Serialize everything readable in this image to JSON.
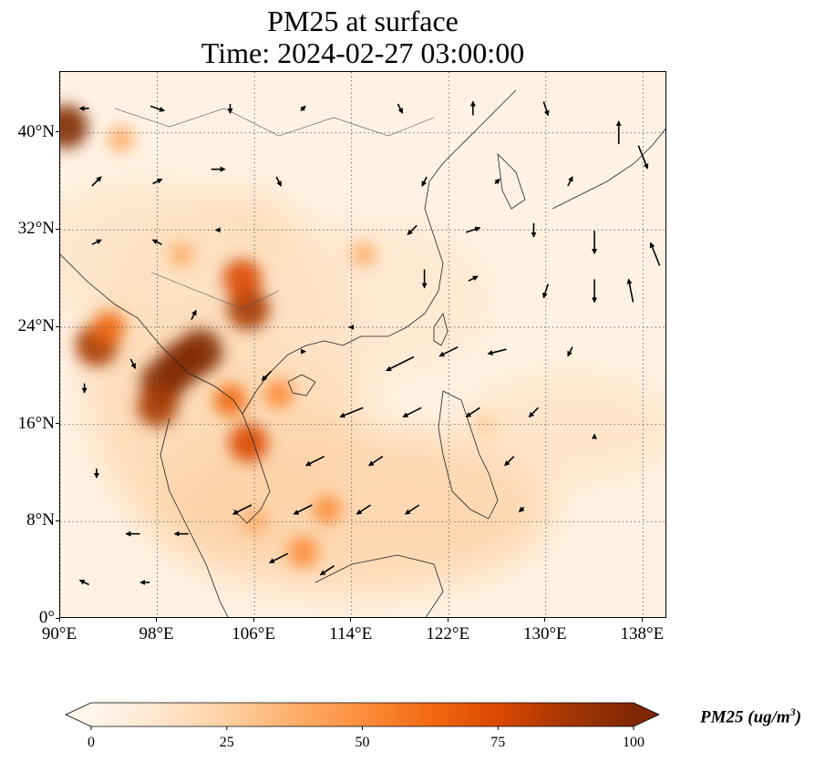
{
  "figure": {
    "title_line1": "PM25 at surface",
    "title_line2": "Time: 2024-02-27 03:00:00"
  },
  "map_extent": {
    "lon_min": 90,
    "lon_max": 140,
    "lat_min": 0,
    "lat_max": 45
  },
  "axes": {
    "lat_ticks": [
      {
        "value": 0,
        "label": "0°"
      },
      {
        "value": 8,
        "label": "8°N"
      },
      {
        "value": 16,
        "label": "16°N"
      },
      {
        "value": 24,
        "label": "24°N"
      },
      {
        "value": 32,
        "label": "32°N"
      },
      {
        "value": 40,
        "label": "40°N"
      }
    ],
    "lon_ticks": [
      {
        "value": 90,
        "label": "90°E"
      },
      {
        "value": 98,
        "label": "98°E"
      },
      {
        "value": 106,
        "label": "106°E"
      },
      {
        "value": 114,
        "label": "114°E"
      },
      {
        "value": 122,
        "label": "122°E"
      },
      {
        "value": 130,
        "label": "130°E"
      },
      {
        "value": 138,
        "label": "138°E"
      }
    ],
    "gridlines": "dotted"
  },
  "colorbar": {
    "title": "PM25 (ug/m",
    "title_sup": "3",
    "title_end": ")",
    "min": 0,
    "max": 100,
    "ticks": [
      {
        "value": 0,
        "label": "0"
      },
      {
        "value": 25,
        "label": "25"
      },
      {
        "value": 50,
        "label": "50"
      },
      {
        "value": 75,
        "label": "75"
      },
      {
        "value": 100,
        "label": "100"
      }
    ],
    "colormap": [
      "#fff5eb",
      "#fee6ce",
      "#fdd0a2",
      "#fdae6b",
      "#fd8d3c",
      "#f16913",
      "#d94801",
      "#a63603",
      "#7f2704"
    ],
    "extend": "both"
  },
  "pm25_hotspots": [
    {
      "lon": 90.5,
      "lat": 40.5,
      "value": 95
    },
    {
      "lon": 93,
      "lat": 22.5,
      "value": 90
    },
    {
      "lon": 100,
      "lat": 21,
      "value": 100
    },
    {
      "lon": 98.5,
      "lat": 19.5,
      "value": 100
    },
    {
      "lon": 101.5,
      "lat": 22,
      "value": 100
    },
    {
      "lon": 98,
      "lat": 17.5,
      "value": 85
    },
    {
      "lon": 105.5,
      "lat": 25.5,
      "value": 90
    },
    {
      "lon": 105,
      "lat": 28,
      "value": 80
    },
    {
      "lon": 105.5,
      "lat": 14.5,
      "value": 80
    },
    {
      "lon": 94,
      "lat": 24,
      "value": 60
    },
    {
      "lon": 104,
      "lat": 18,
      "value": 60
    },
    {
      "lon": 108,
      "lat": 18.5,
      "value": 50
    },
    {
      "lon": 110,
      "lat": 5.5,
      "value": 55
    },
    {
      "lon": 112,
      "lat": 9,
      "value": 45
    },
    {
      "lon": 95,
      "lat": 39.5,
      "value": 40
    },
    {
      "lon": 100,
      "lat": 30,
      "value": 35
    },
    {
      "lon": 115,
      "lat": 30,
      "value": 35
    },
    {
      "lon": 106,
      "lat": 8,
      "value": 40
    },
    {
      "lon": 125,
      "lat": 16,
      "value": 30
    }
  ],
  "wind_vectors": [
    {
      "lon": 92,
      "lat": 42,
      "u": -2,
      "v": 0
    },
    {
      "lon": 98,
      "lat": 42,
      "u": 3,
      "v": -1
    },
    {
      "lon": 104,
      "lat": 42,
      "u": 0,
      "v": -2
    },
    {
      "lon": 110,
      "lat": 42,
      "u": 1,
      "v": 1
    },
    {
      "lon": 118,
      "lat": 42,
      "u": 1,
      "v": -2
    },
    {
      "lon": 124,
      "lat": 42,
      "u": 0,
      "v": 3
    },
    {
      "lon": 130,
      "lat": 42,
      "u": 1,
      "v": -3
    },
    {
      "lon": 136,
      "lat": 40,
      "u": 0,
      "v": 5
    },
    {
      "lon": 138,
      "lat": 38,
      "u": 2,
      "v": -5
    },
    {
      "lon": 93,
      "lat": 36,
      "u": 2,
      "v": 2
    },
    {
      "lon": 98,
      "lat": 36,
      "u": 2,
      "v": 1
    },
    {
      "lon": 103,
      "lat": 37,
      "u": 3,
      "v": 0
    },
    {
      "lon": 108,
      "lat": 36,
      "u": 1,
      "v": -2
    },
    {
      "lon": 120,
      "lat": 36,
      "u": -1,
      "v": -2
    },
    {
      "lon": 126,
      "lat": 36,
      "u": 1,
      "v": 1
    },
    {
      "lon": 132,
      "lat": 36,
      "u": 1,
      "v": 2
    },
    {
      "lon": 93,
      "lat": 31,
      "u": 2,
      "v": 1
    },
    {
      "lon": 98,
      "lat": 31,
      "u": -2,
      "v": 1
    },
    {
      "lon": 103,
      "lat": 32,
      "u": -1,
      "v": 0
    },
    {
      "lon": 119,
      "lat": 32,
      "u": -2,
      "v": -2
    },
    {
      "lon": 124,
      "lat": 32,
      "u": 3,
      "v": 1
    },
    {
      "lon": 129,
      "lat": 32,
      "u": 0,
      "v": -3
    },
    {
      "lon": 134,
      "lat": 31,
      "u": 0,
      "v": -5
    },
    {
      "lon": 139,
      "lat": 30,
      "u": -2,
      "v": 5
    },
    {
      "lon": 120,
      "lat": 28,
      "u": 0,
      "v": -4
    },
    {
      "lon": 124,
      "lat": 28,
      "u": 2,
      "v": 1
    },
    {
      "lon": 130,
      "lat": 27,
      "u": -1,
      "v": -3
    },
    {
      "lon": 134,
      "lat": 27,
      "u": 0,
      "v": -5
    },
    {
      "lon": 137,
      "lat": 27,
      "u": -1,
      "v": 5
    },
    {
      "lon": 118,
      "lat": 21,
      "u": -6,
      "v": -3
    },
    {
      "lon": 122,
      "lat": 22,
      "u": -4,
      "v": -2
    },
    {
      "lon": 126,
      "lat": 22,
      "u": -4,
      "v": -1
    },
    {
      "lon": 132,
      "lat": 22,
      "u": -1,
      "v": -2
    },
    {
      "lon": 114,
      "lat": 17,
      "u": -5,
      "v": -2
    },
    {
      "lon": 119,
      "lat": 17,
      "u": -4,
      "v": -2
    },
    {
      "lon": 124,
      "lat": 17,
      "u": -3,
      "v": -2
    },
    {
      "lon": 129,
      "lat": 17,
      "u": -2,
      "v": -2
    },
    {
      "lon": 111,
      "lat": 13,
      "u": -4,
      "v": -2
    },
    {
      "lon": 116,
      "lat": 13,
      "u": -3,
      "v": -2
    },
    {
      "lon": 127,
      "lat": 13,
      "u": -2,
      "v": -2
    },
    {
      "lon": 105,
      "lat": 9,
      "u": -4,
      "v": -2
    },
    {
      "lon": 110,
      "lat": 9,
      "u": -4,
      "v": -2
    },
    {
      "lon": 115,
      "lat": 9,
      "u": -3,
      "v": -2
    },
    {
      "lon": 119,
      "lat": 9,
      "u": -3,
      "v": -2
    },
    {
      "lon": 108,
      "lat": 5,
      "u": -4,
      "v": -2
    },
    {
      "lon": 112,
      "lat": 4,
      "u": -3,
      "v": -2
    },
    {
      "lon": 96,
      "lat": 7,
      "u": -3,
      "v": 0
    },
    {
      "lon": 100,
      "lat": 7,
      "u": -3,
      "v": 0
    },
    {
      "lon": 93,
      "lat": 12,
      "u": 0,
      "v": -2
    },
    {
      "lon": 92,
      "lat": 3,
      "u": -2,
      "v": 1
    },
    {
      "lon": 97,
      "lat": 3,
      "u": -2,
      "v": 0
    },
    {
      "lon": 114,
      "lat": 24,
      "u": -1,
      "v": 0
    },
    {
      "lon": 110,
      "lat": 22,
      "u": 1,
      "v": 0
    },
    {
      "lon": 107,
      "lat": 20,
      "u": -2,
      "v": -2
    },
    {
      "lon": 134,
      "lat": 15,
      "u": 0,
      "v": 1
    },
    {
      "lon": 128,
      "lat": 9,
      "u": -1,
      "v": -1
    },
    {
      "lon": 101,
      "lat": 25,
      "u": 1,
      "v": 2
    },
    {
      "lon": 96,
      "lat": 21,
      "u": 1,
      "v": -2
    },
    {
      "lon": 92,
      "lat": 19,
      "u": 0,
      "v": -2
    }
  ]
}
